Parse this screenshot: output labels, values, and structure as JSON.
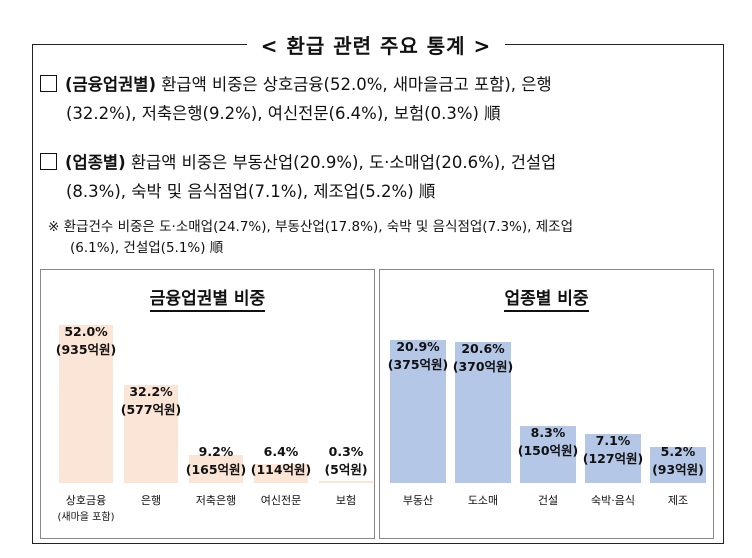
{
  "header": {
    "title": "< 환급 관련 주요 통계 >"
  },
  "bullets": [
    {
      "label": "(금융업권별)",
      "line1": "환급액 비중은 상호금융(52.0%, 새마을금고 포함), 은행",
      "line2": "(32.2%), 저축은행(9.2%), 여신전문(6.4%), 보험(0.3%) 順"
    },
    {
      "label": "(업종별)",
      "line1": "환급액 비중은 부동산업(20.9%), 도·소매업(20.6%), 건설업",
      "line2": "(8.3%), 숙박 및 음식점업(7.1%), 제조업(5.2%) 順"
    }
  ],
  "note": {
    "mark": "※",
    "line1": "환급건수 비중은 도·소매업(24.7%), 부동산업(17.8%), 숙박 및 음식점업(7.3%), 제조업",
    "line2": "(6.1%), 건설업(5.1%) 順"
  },
  "chart_data": [
    {
      "type": "bar",
      "title": "금융업권별 비중",
      "color": "#FBE5D6",
      "ylim": [
        0,
        52.0
      ],
      "categories": [
        "상호금융",
        "은행",
        "저축은행",
        "여신전문",
        "보험"
      ],
      "sublabels": [
        "(새마을 포함)",
        "",
        "",
        "",
        ""
      ],
      "values": [
        52.0,
        32.2,
        9.2,
        6.4,
        0.3
      ],
      "value_labels": [
        "52.0%",
        "32.2%",
        "9.2%",
        "6.4%",
        "0.3%"
      ],
      "amount_labels": [
        "(935억원)",
        "(577억원)",
        "(165억원)",
        "(114억원)",
        "(5억원)"
      ]
    },
    {
      "type": "bar",
      "title": "업종별 비중",
      "color": "#B4C7E7",
      "ylim": [
        0,
        20.9
      ],
      "categories": [
        "부동산",
        "도소매",
        "건설",
        "숙박·음식",
        "제조"
      ],
      "sublabels": [
        "",
        "",
        "",
        "",
        ""
      ],
      "values": [
        20.9,
        20.6,
        8.3,
        7.1,
        5.2
      ],
      "value_labels": [
        "20.9%",
        "20.6%",
        "8.3%",
        "7.1%",
        "5.2%"
      ],
      "amount_labels": [
        "(375억원)",
        "(370억원)",
        "(150억원)",
        "(127억원)",
        "(93억원)"
      ]
    }
  ]
}
